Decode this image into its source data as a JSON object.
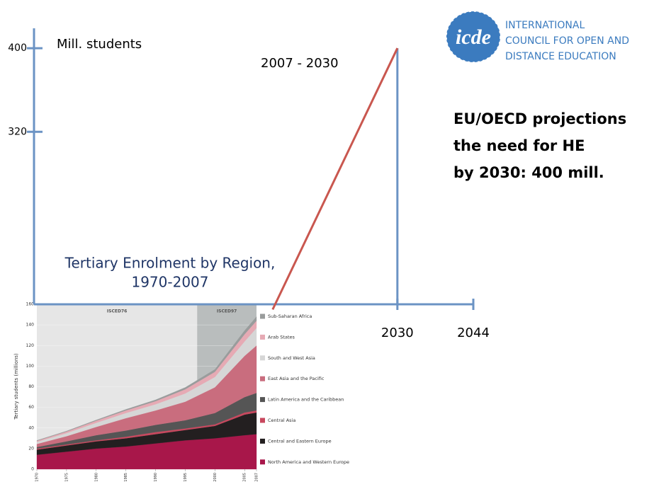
{
  "logo": {
    "mark": "icde",
    "lines": [
      "INTERNATIONAL",
      "COUNCIL FOR OPEN AND",
      "DISTANCE EDUCATION"
    ]
  },
  "headline": [
    "EU/OECD projections",
    "the need for HE",
    "by 2030: 400 mill."
  ],
  "chart_data": [
    {
      "type": "area",
      "stacked": true,
      "title_lines": [
        "Tertiary Enrolment by Region,",
        "1970-2007"
      ],
      "ylabel": "Tertiary students (millions)",
      "x": [
        1970,
        1975,
        1980,
        1985,
        1990,
        1995,
        2000,
        2005,
        2007
      ],
      "xlim": [
        1970,
        2007
      ],
      "xticks": [
        1970,
        1975,
        1980,
        1985,
        1990,
        1995,
        2000,
        2005,
        2007
      ],
      "ylim": [
        0,
        160
      ],
      "yticks": [
        0,
        20,
        40,
        60,
        80,
        100,
        120,
        140,
        160
      ],
      "regions": [
        {
          "label": "ISCED76",
          "x": [
            1970,
            1997
          ],
          "color": "#e6e6e6"
        },
        {
          "label": "ISCED97",
          "x": [
            1997,
            2007
          ],
          "color": "#b9bdbd"
        }
      ],
      "series": [
        {
          "name": "North America and Western Europe",
          "color": "#a8174a",
          "values": [
            14,
            17,
            20,
            22,
            25,
            28,
            30,
            33,
            34
          ]
        },
        {
          "name": "Central and Eastern Europe",
          "color": "#231f20",
          "values": [
            5,
            6,
            7,
            8,
            9,
            10,
            12,
            20,
            21
          ]
        },
        {
          "name": "Central Asia",
          "color": "#c8485e",
          "values": [
            1,
            1,
            1,
            1.5,
            2,
            1.5,
            1.5,
            2,
            2
          ]
        },
        {
          "name": "Latin America and the Caribbean",
          "color": "#555555",
          "values": [
            1.5,
            3,
            5,
            6,
            7,
            8,
            11,
            15,
            17
          ]
        },
        {
          "name": "East Asia and the Pacific",
          "color": "#c96d7e",
          "values": [
            3,
            5,
            8,
            12,
            14,
            18,
            25,
            40,
            46
          ]
        },
        {
          "name": "South and West Asia",
          "color": "#d6d6d6",
          "values": [
            2,
            3,
            4,
            5,
            6,
            8,
            10,
            14,
            17
          ]
        },
        {
          "name": "Arab States",
          "color": "#e6aab4",
          "values": [
            1,
            1.5,
            2,
            2.5,
            3,
            4,
            5,
            7,
            7
          ]
        },
        {
          "name": "Sub-Saharan Africa",
          "color": "#999c9c",
          "values": [
            0.4,
            0.5,
            0.7,
            1,
            1.3,
            1.8,
            2.3,
            3.5,
            4
          ]
        }
      ]
    },
    {
      "type": "line",
      "ylabel": "Mill. students",
      "annotation": "2007 - 2030",
      "x": [
        2007,
        2030
      ],
      "xlim": [
        1963,
        2044
      ],
      "xticks": [
        2030,
        2044
      ],
      "ylim": [
        155,
        419
      ],
      "yticks": [
        320,
        400
      ],
      "axis_color": "#6b93c4",
      "series": [
        {
          "color": "#c9574f",
          "values": [
            150,
            400
          ]
        }
      ]
    }
  ]
}
